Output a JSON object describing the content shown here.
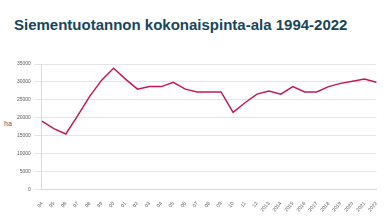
{
  "chart_data": {
    "type": "line",
    "title": "Siementuotannon kokonaispinta-ala 1994-2022",
    "y_label": "ha",
    "categories": [
      "94",
      "95",
      "96",
      "97",
      "98",
      "99",
      "00",
      "01",
      "02",
      "03",
      "04",
      "05",
      "06",
      "07",
      "08",
      "09",
      "10",
      "11",
      "12",
      "2013",
      "2014",
      "2015",
      "2016",
      "2017",
      "2018",
      "2019",
      "2020",
      "2021",
      "2022"
    ],
    "values": [
      19100,
      17000,
      15500,
      20600,
      26000,
      30500,
      33800,
      30800,
      28000,
      28700,
      28700,
      29900,
      28000,
      27200,
      27200,
      27200,
      21500,
      24200,
      26600,
      27500,
      26600,
      28700,
      27200,
      27200,
      28700,
      29600,
      30200,
      30800,
      29900
    ],
    "color": "#c2185b",
    "ylim": [
      0,
      35000
    ],
    "yticks": [
      0,
      5000,
      10000,
      15000,
      20000,
      25000,
      30000,
      35000
    ],
    "grid": true
  }
}
